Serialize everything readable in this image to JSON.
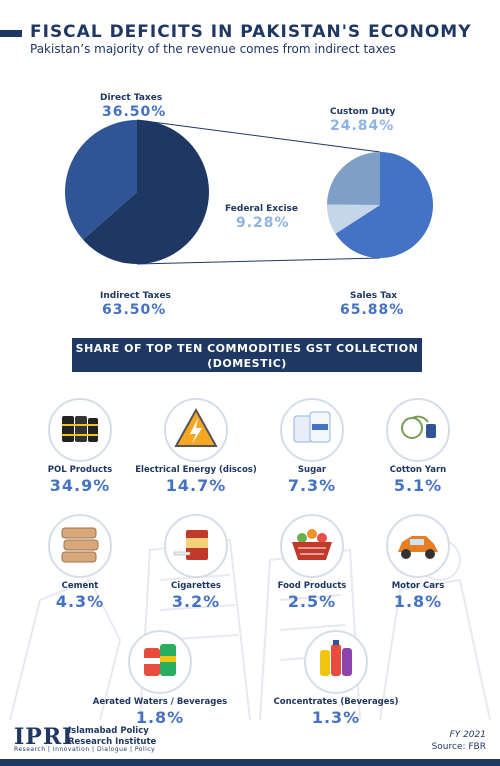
{
  "header": {
    "title": "FISCAL DEFICITS IN PAKISTAN'S ECONOMY",
    "subtitle": "Pakistan’s majority of the revenue comes from indirect taxes"
  },
  "colors": {
    "navy": "#1f3763",
    "blue": "#4472c4",
    "light_blue": "#8eb4e3",
    "mid_blue": "#2f5597",
    "slate": "#7f9fc7"
  },
  "chart_data": [
    {
      "type": "pie",
      "categories": [
        "Direct Taxes",
        "Indirect Taxes"
      ],
      "values": [
        36.5,
        63.5
      ],
      "labels": [
        "36.50%",
        "63.50%"
      ]
    },
    {
      "type": "pie",
      "categories": [
        "Custom Duty",
        "Federal Excise",
        "Sales Tax"
      ],
      "values": [
        24.84,
        9.28,
        65.88
      ],
      "labels": [
        "24.84%",
        "9.28%",
        "65.88%"
      ]
    },
    {
      "type": "table",
      "title": "SHARE OF TOP TEN COMMODITIES GST COLLECTION (DOMESTIC)",
      "categories": [
        "POL Products",
        "Electrical Energy (discos)",
        "Sugar",
        "Cotton Yarn",
        "Cement",
        "Cigarettes",
        "Food Products",
        "Motor Cars",
        "Aerated Waters / Beverages",
        "Concentrates (Beverages)"
      ],
      "values": [
        34.9,
        14.7,
        7.3,
        5.1,
        4.3,
        3.2,
        2.5,
        1.8,
        1.8,
        1.3
      ],
      "labels": [
        "34.9%",
        "14.7%",
        "7.3%",
        "5.1%",
        "4.3%",
        "3.2%",
        "2.5%",
        "1.8%",
        "1.8%",
        "1.3%"
      ],
      "icons": [
        "oil-barrels-icon",
        "electricity-warning-icon",
        "sugar-bags-icon",
        "cotton-spool-icon",
        "cement-bags-icon",
        "cigarette-pack-icon",
        "food-basket-icon",
        "motor-car-icon",
        "soda-cans-icon",
        "beverage-bottles-icon"
      ]
    }
  ],
  "footer": {
    "logo": "IPRI",
    "org_line1": "Islamabad Policy",
    "org_line2": "Research Institute",
    "tagline": "Research | Innovation | Dialogue | Policy",
    "fy": "FY 2021",
    "source": "Source: FBR"
  }
}
